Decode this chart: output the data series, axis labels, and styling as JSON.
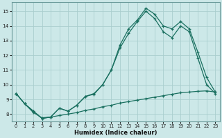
{
  "xlabel": "Humidex (Indice chaleur)",
  "xlim": [
    -0.5,
    23.5
  ],
  "ylim": [
    7.5,
    15.6
  ],
  "yticks": [
    8,
    9,
    10,
    11,
    12,
    13,
    14,
    15
  ],
  "xticks": [
    0,
    1,
    2,
    3,
    4,
    5,
    6,
    7,
    8,
    9,
    10,
    11,
    12,
    13,
    14,
    15,
    16,
    17,
    18,
    19,
    20,
    21,
    22,
    23
  ],
  "bg_color": "#cce8e8",
  "grid_color": "#aacece",
  "line_color": "#1a7060",
  "line1_x": [
    0,
    1,
    2,
    3,
    4,
    5,
    6,
    7,
    8,
    9,
    10,
    11,
    12,
    13,
    14,
    15,
    16,
    17,
    18,
    19,
    20,
    21,
    22,
    23
  ],
  "line1_y": [
    9.4,
    8.7,
    8.2,
    7.7,
    7.8,
    8.4,
    8.2,
    8.6,
    9.2,
    9.4,
    10.0,
    11.0,
    12.7,
    13.8,
    14.4,
    15.2,
    14.8,
    14.0,
    13.8,
    14.3,
    13.8,
    12.2,
    10.5,
    9.5
  ],
  "line2_x": [
    0,
    1,
    2,
    3,
    4,
    5,
    6,
    7,
    8,
    9,
    10,
    11,
    12,
    13,
    14,
    15,
    16,
    17,
    18,
    19,
    20,
    21,
    22,
    23
  ],
  "line2_y": [
    9.4,
    8.7,
    8.2,
    7.7,
    7.8,
    8.4,
    8.2,
    8.6,
    9.2,
    9.35,
    10.0,
    11.0,
    12.5,
    13.5,
    14.3,
    15.0,
    14.5,
    13.6,
    13.2,
    14.0,
    13.6,
    11.8,
    10.0,
    9.4
  ],
  "line3_x": [
    0,
    1,
    2,
    3,
    4,
    5,
    6,
    7,
    8,
    9,
    10,
    11,
    12,
    13,
    14,
    15,
    16,
    17,
    18,
    19,
    20,
    21,
    22,
    23
  ],
  "line3_y": [
    9.4,
    8.7,
    8.1,
    7.75,
    7.8,
    7.9,
    8.0,
    8.1,
    8.25,
    8.35,
    8.5,
    8.6,
    8.75,
    8.85,
    8.95,
    9.05,
    9.15,
    9.25,
    9.35,
    9.45,
    9.5,
    9.55,
    9.58,
    9.5
  ]
}
